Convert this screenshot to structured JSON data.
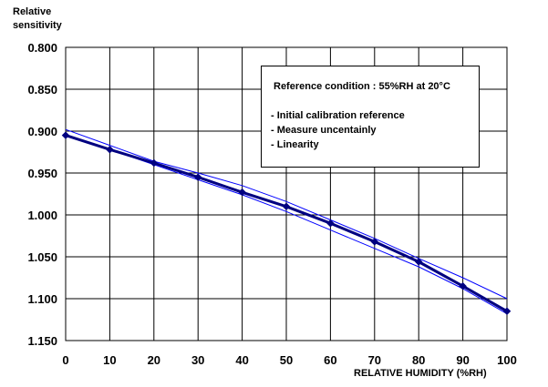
{
  "chart_data": {
    "type": "line",
    "ylabel": "Relative\nsensitivity",
    "xlabel": "RELATIVE HUMIDITY (%RH)",
    "xlim": [
      0,
      100
    ],
    "ylim": [
      0.8,
      1.15
    ],
    "y_inverted": true,
    "grid": true,
    "x_ticks": [
      "0",
      "10",
      "20",
      "30",
      "40",
      "50",
      "60",
      "70",
      "80",
      "90",
      "100"
    ],
    "y_ticks": [
      "0.800",
      "0.850",
      "0.900",
      "0.950",
      "1.000",
      "1.050",
      "1.100",
      "1.150"
    ],
    "x": [
      0,
      10,
      20,
      30,
      40,
      50,
      60,
      70,
      80,
      90,
      100
    ],
    "series": [
      {
        "values": [
          0.905,
          0.922,
          0.938,
          0.955,
          0.973,
          0.99,
          1.01,
          1.032,
          1.056,
          1.085,
          1.115
        ],
        "color": "#000080",
        "markers": true,
        "width": 3
      },
      {
        "values": [
          0.898,
          0.917,
          0.936,
          0.95,
          0.965,
          0.984,
          1.006,
          1.028,
          1.052,
          1.075,
          1.1
        ],
        "color": "#0000ff",
        "markers": false,
        "width": 1
      },
      {
        "values": [
          0.906,
          0.922,
          0.94,
          0.958,
          0.976,
          0.996,
          1.018,
          1.04,
          1.062,
          1.088,
          1.118
        ],
        "color": "#0000ff",
        "markers": false,
        "width": 1
      }
    ],
    "annotation": {
      "title": "Reference condition : 55%RH at 20°C",
      "items": [
        "- Initial calibration reference",
        "- Measure uncentainly",
        "- Linearity"
      ]
    }
  }
}
